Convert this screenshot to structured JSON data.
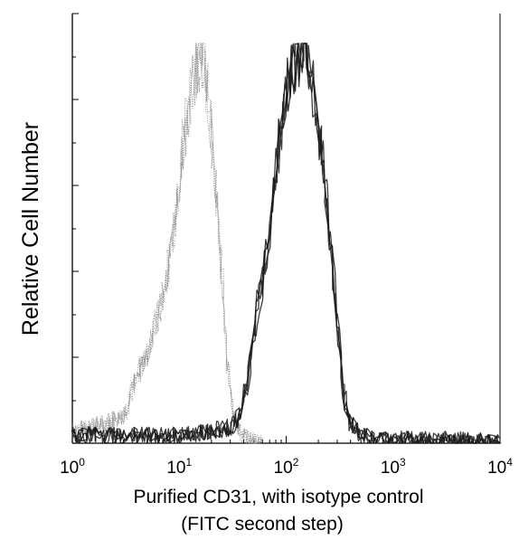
{
  "chart_data": {
    "type": "area",
    "x_scale": "log",
    "xlim": [
      1,
      10000
    ],
    "ylim": [
      0,
      100
    ],
    "grid": false,
    "legend": "none",
    "ylabel": "Relative Cell Number",
    "xlabel_line1": "Purified CD31, with isotype control",
    "xlabel_line2": "(FITC second step)",
    "x_ticks": [
      {
        "base": "10",
        "exp": "0",
        "value": 1
      },
      {
        "base": "10",
        "exp": "1",
        "value": 10
      },
      {
        "base": "10",
        "exp": "2",
        "value": 100
      },
      {
        "base": "10",
        "exp": "3",
        "value": 1000
      },
      {
        "base": "10",
        "exp": "4",
        "value": 10000
      }
    ],
    "series": [
      {
        "color": "#8a8a8a",
        "x": [
          1,
          1.5,
          2,
          2.6,
          3.2,
          3.7,
          4.2,
          5,
          6,
          7,
          8,
          9,
          10,
          11,
          12,
          13,
          14,
          15,
          16,
          17,
          18,
          20,
          22,
          25,
          28,
          32,
          36,
          40,
          45,
          50,
          60
        ],
        "y": [
          3,
          4,
          5,
          6,
          8,
          14,
          18,
          22,
          30,
          36,
          45,
          55,
          66,
          75,
          82,
          88,
          92,
          95,
          97,
          96,
          90,
          78,
          64,
          42,
          20,
          8,
          4,
          2,
          1,
          0.5,
          0
        ]
      },
      {
        "color": "#1a1a1a",
        "x": [
          1,
          2,
          5,
          10,
          20,
          30,
          35,
          40,
          45,
          50,
          55,
          60,
          70,
          80,
          90,
          100,
          110,
          120,
          130,
          140,
          150,
          160,
          180,
          200,
          230,
          260,
          300,
          350,
          400,
          500,
          700,
          1000,
          3000,
          10000
        ],
        "y": [
          2,
          2,
          2,
          2,
          3,
          4,
          6,
          10,
          18,
          28,
          35,
          40,
          52,
          68,
          80,
          88,
          92,
          94,
          96,
          98,
          97,
          94,
          88,
          78,
          66,
          50,
          30,
          12,
          5,
          2,
          1,
          1,
          1,
          0.5
        ]
      }
    ]
  }
}
